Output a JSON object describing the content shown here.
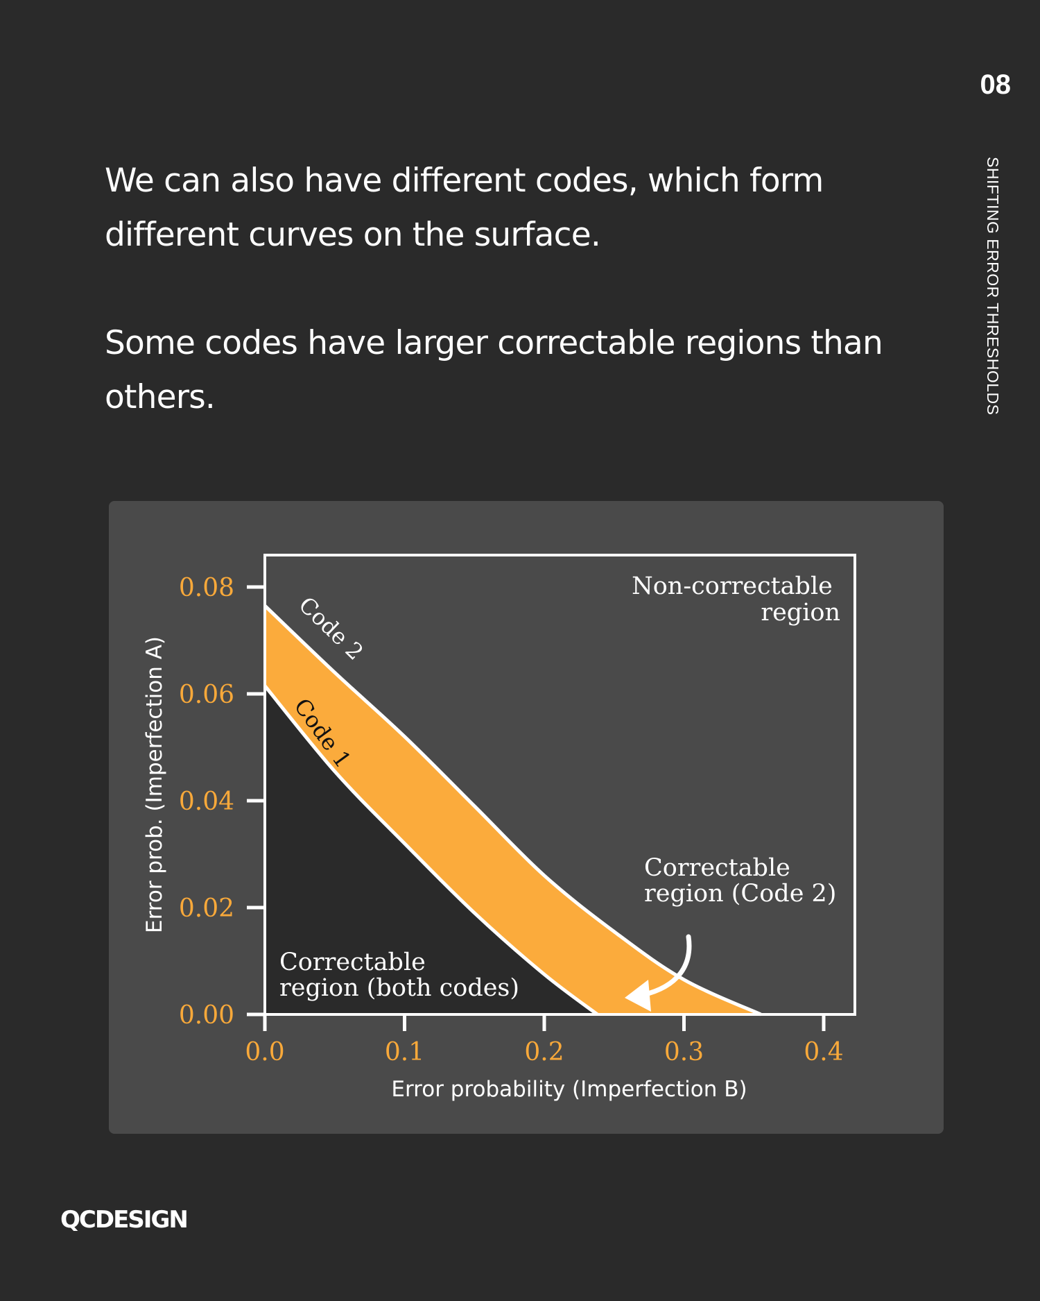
{
  "header": {
    "page_number": "08",
    "section_title": "SHIFTING ERROR THRESHOLDS"
  },
  "body": {
    "paragraph_1": "We can also have different codes, which form different curves on the surface.",
    "paragraph_2": "Some codes have larger correctable regions than others."
  },
  "footer": {
    "logo_text": "QCDESIGN"
  },
  "colors": {
    "background": "#2a2a2a",
    "card": "#4a4a4a",
    "accent_orange": "#fbab3c",
    "tick_orange": "#f9a93a",
    "both_codes_region": "#2a2a2a",
    "axis_white": "#ffffff"
  },
  "chart_data": {
    "type": "area",
    "title": "",
    "xlabel": "Error probability (Imperfection B)",
    "ylabel": "Error prob. (Imperfection A)",
    "xlim": [
      0.0,
      0.42
    ],
    "ylim": [
      0.0,
      0.085
    ],
    "x_ticks": [
      "0.0",
      "0.1",
      "0.2",
      "0.3",
      "0.4"
    ],
    "y_ticks": [
      "0.00",
      "0.02",
      "0.04",
      "0.06",
      "0.08"
    ],
    "grid": false,
    "legend": "none (inline curve labels)",
    "series": [
      {
        "name": "Code 1",
        "x": [
          0.0,
          0.05,
          0.1,
          0.15,
          0.2,
          0.238
        ],
        "y": [
          0.0615,
          0.0455,
          0.032,
          0.019,
          0.0075,
          0.0
        ]
      },
      {
        "name": "Code 2",
        "x": [
          0.0,
          0.05,
          0.1,
          0.15,
          0.2,
          0.25,
          0.3,
          0.355
        ],
        "y": [
          0.0765,
          0.064,
          0.052,
          0.039,
          0.026,
          0.0155,
          0.0065,
          0.0
        ]
      }
    ],
    "regions": {
      "non_correctable": "Non-correctable region",
      "code2_only": "Correctable region (Code 2)",
      "both": "Correctable region (both codes)"
    },
    "annotations": [
      {
        "text": "Non-correctable",
        "line2": "region"
      },
      {
        "text": "Correctable",
        "line2": "region (Code 2)"
      },
      {
        "text": "Correctable",
        "line2": "region (both codes)"
      },
      {
        "text": "Code 1"
      },
      {
        "text": "Code 2"
      }
    ]
  }
}
